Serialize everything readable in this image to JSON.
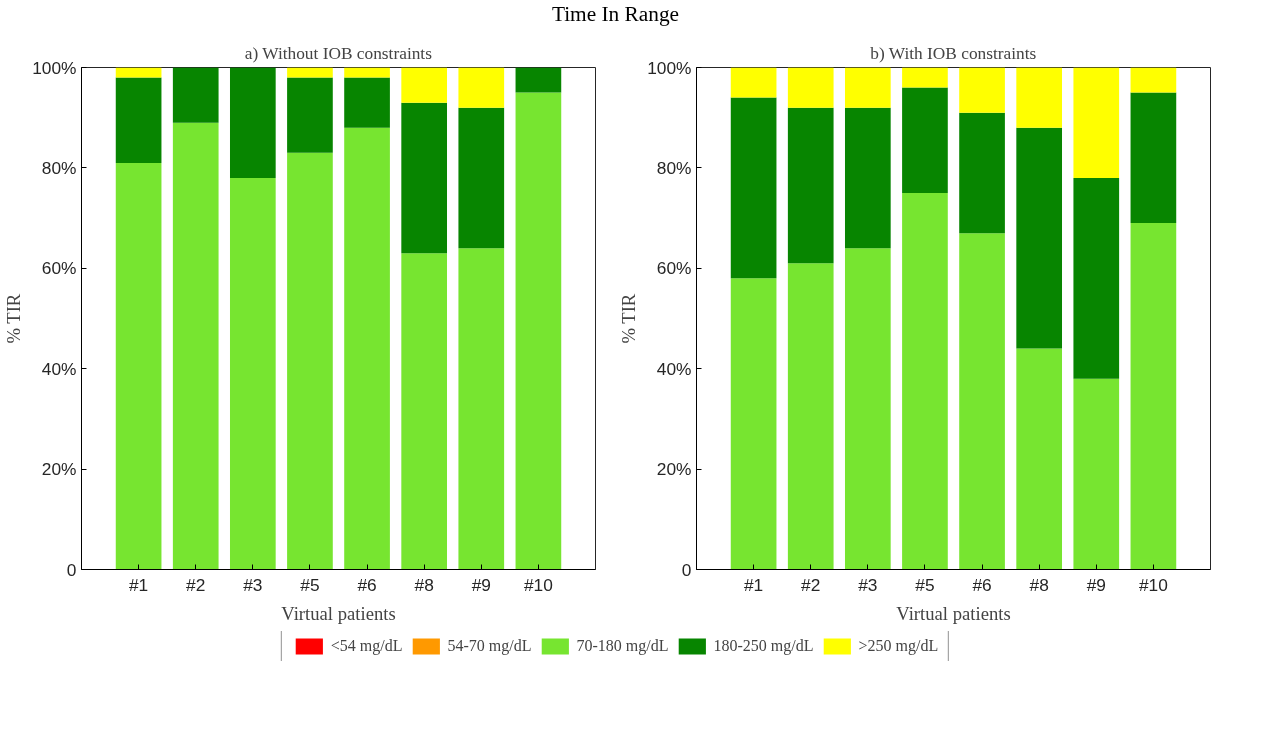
{
  "chart_data": [
    {
      "type": "bar",
      "title": "Time In Range",
      "subtitle": "a) Without IOB constraints",
      "xlabel": "Virtual patients",
      "ylabel": "% TIR",
      "stacked": true,
      "legend": "bottom",
      "grid": false,
      "categories": [
        "#1",
        "#2",
        "#3",
        "#5",
        "#6",
        "#8",
        "#9",
        "#10"
      ],
      "ylim": [
        0,
        100
      ],
      "yticks": [
        0,
        {
          "value": 20,
          "label": "20%"
        },
        {
          "value": 40,
          "label": "40%"
        },
        {
          "value": 60,
          "label": "60%"
        },
        {
          "value": 80,
          "label": "80%"
        },
        {
          "value": 100,
          "label": "100%"
        }
      ],
      "series": [
        {
          "name": "<54 mg/dL",
          "color": "#ff0000",
          "values": [
            0,
            0,
            0,
            0,
            0,
            0,
            0,
            0
          ]
        },
        {
          "name": "54-70 mg/dL",
          "color": "#ff9900",
          "values": [
            0,
            0,
            0,
            0,
            0,
            0,
            0,
            0
          ]
        },
        {
          "name": "70-180 mg/dL",
          "color": "#77e530",
          "values": [
            81,
            89,
            78,
            83,
            88,
            63,
            64,
            95
          ]
        },
        {
          "name": "180-250 mg/dL",
          "color": "#078500",
          "values": [
            17,
            11,
            22,
            15,
            10,
            30,
            28,
            5
          ]
        },
        {
          "name": ">250 mg/dL",
          "color": "#ffff00",
          "values": [
            2,
            0,
            0,
            2,
            2,
            7,
            8,
            0
          ]
        }
      ]
    },
    {
      "type": "bar",
      "subtitle": "b) With IOB constraints",
      "xlabel": "Virtual patients",
      "ylabel": "% TIR",
      "stacked": true,
      "grid": false,
      "categories": [
        "#1",
        "#2",
        "#3",
        "#5",
        "#6",
        "#8",
        "#9",
        "#10"
      ],
      "ylim": [
        0,
        100
      ],
      "yticks": [
        0,
        {
          "value": 20,
          "label": "20%"
        },
        {
          "value": 40,
          "label": "40%"
        },
        {
          "value": 60,
          "label": "60%"
        },
        {
          "value": 80,
          "label": "80%"
        },
        {
          "value": 100,
          "label": "100%"
        }
      ],
      "series": [
        {
          "color": "#ff0000",
          "values": [
            0,
            0,
            0,
            0,
            0,
            0,
            0,
            0
          ]
        },
        {
          "color": "#ff9900",
          "values": [
            0,
            0,
            0,
            0,
            0,
            0,
            0,
            0
          ]
        },
        {
          "color": "#77e530",
          "values": [
            58,
            61,
            64,
            75,
            67,
            44,
            38,
            69
          ]
        },
        {
          "color": "#078500",
          "values": [
            36,
            31,
            28,
            21,
            24,
            44,
            40,
            26
          ]
        },
        {
          "color": "#ffff00",
          "values": [
            6,
            8,
            8,
            4,
            9,
            12,
            22,
            5
          ]
        }
      ]
    }
  ]
}
